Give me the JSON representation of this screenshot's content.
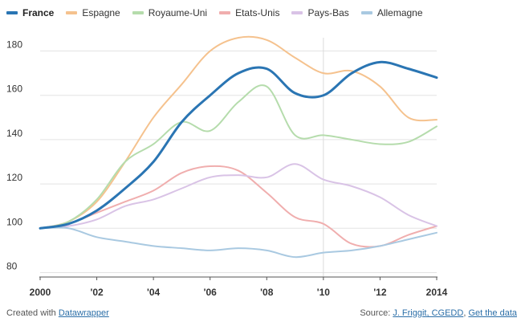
{
  "chart_data": {
    "type": "line",
    "title": "",
    "xlabel": "",
    "ylabel": "",
    "x": [
      2000,
      2001,
      2002,
      2003,
      2004,
      2005,
      2006,
      2007,
      2008,
      2009,
      2010,
      2011,
      2012,
      2013,
      2014
    ],
    "x_tick_values": [
      2000,
      2002,
      2004,
      2006,
      2008,
      2010,
      2012,
      2014
    ],
    "x_tick_labels": [
      "2000",
      "'02",
      "'04",
      "'06",
      "'08",
      "'10",
      "'12",
      "2014"
    ],
    "y_ticks": [
      80,
      100,
      120,
      140,
      160,
      180
    ],
    "ylim": [
      78,
      186
    ],
    "highlight_x": 2010,
    "series": [
      {
        "name": "France",
        "color": "#2a75b3",
        "primary": true,
        "values": [
          100,
          102,
          108,
          118,
          130,
          148,
          160,
          170,
          172,
          161,
          160,
          170,
          175,
          172,
          168
        ]
      },
      {
        "name": "Espagne",
        "color": "#f5c28e",
        "primary": false,
        "values": [
          100,
          103,
          112,
          130,
          150,
          165,
          180,
          186,
          185,
          177,
          170,
          171,
          164,
          150,
          149
        ]
      },
      {
        "name": "Royaume-Uni",
        "color": "#b5dcac",
        "primary": false,
        "values": [
          100,
          103,
          113,
          130,
          138,
          148,
          144,
          157,
          164,
          142,
          142,
          140,
          138,
          139,
          146
        ]
      },
      {
        "name": "Etats-Unis",
        "color": "#f0aeae",
        "primary": false,
        "values": [
          100,
          102,
          107,
          112,
          117,
          125,
          128,
          126,
          116,
          105,
          102,
          93,
          92,
          97,
          101
        ]
      },
      {
        "name": "Pays-Bas",
        "color": "#d9c3e6",
        "primary": false,
        "values": [
          100,
          101,
          104,
          110,
          113,
          118,
          123,
          124,
          123,
          129,
          122,
          119,
          114,
          106,
          101
        ]
      },
      {
        "name": "Allemagne",
        "color": "#a9c9e1",
        "primary": false,
        "values": [
          100,
          100,
          96,
          94,
          92,
          91,
          90,
          91,
          90,
          87,
          89,
          90,
          92,
          95,
          98
        ]
      }
    ]
  },
  "footer": {
    "created_prefix": "Created with ",
    "created_link": "Datawrapper",
    "source_prefix": "Source: ",
    "source_link": "J. Friggit, CGEDD",
    "separator": ", ",
    "data_link": "Get the data"
  }
}
